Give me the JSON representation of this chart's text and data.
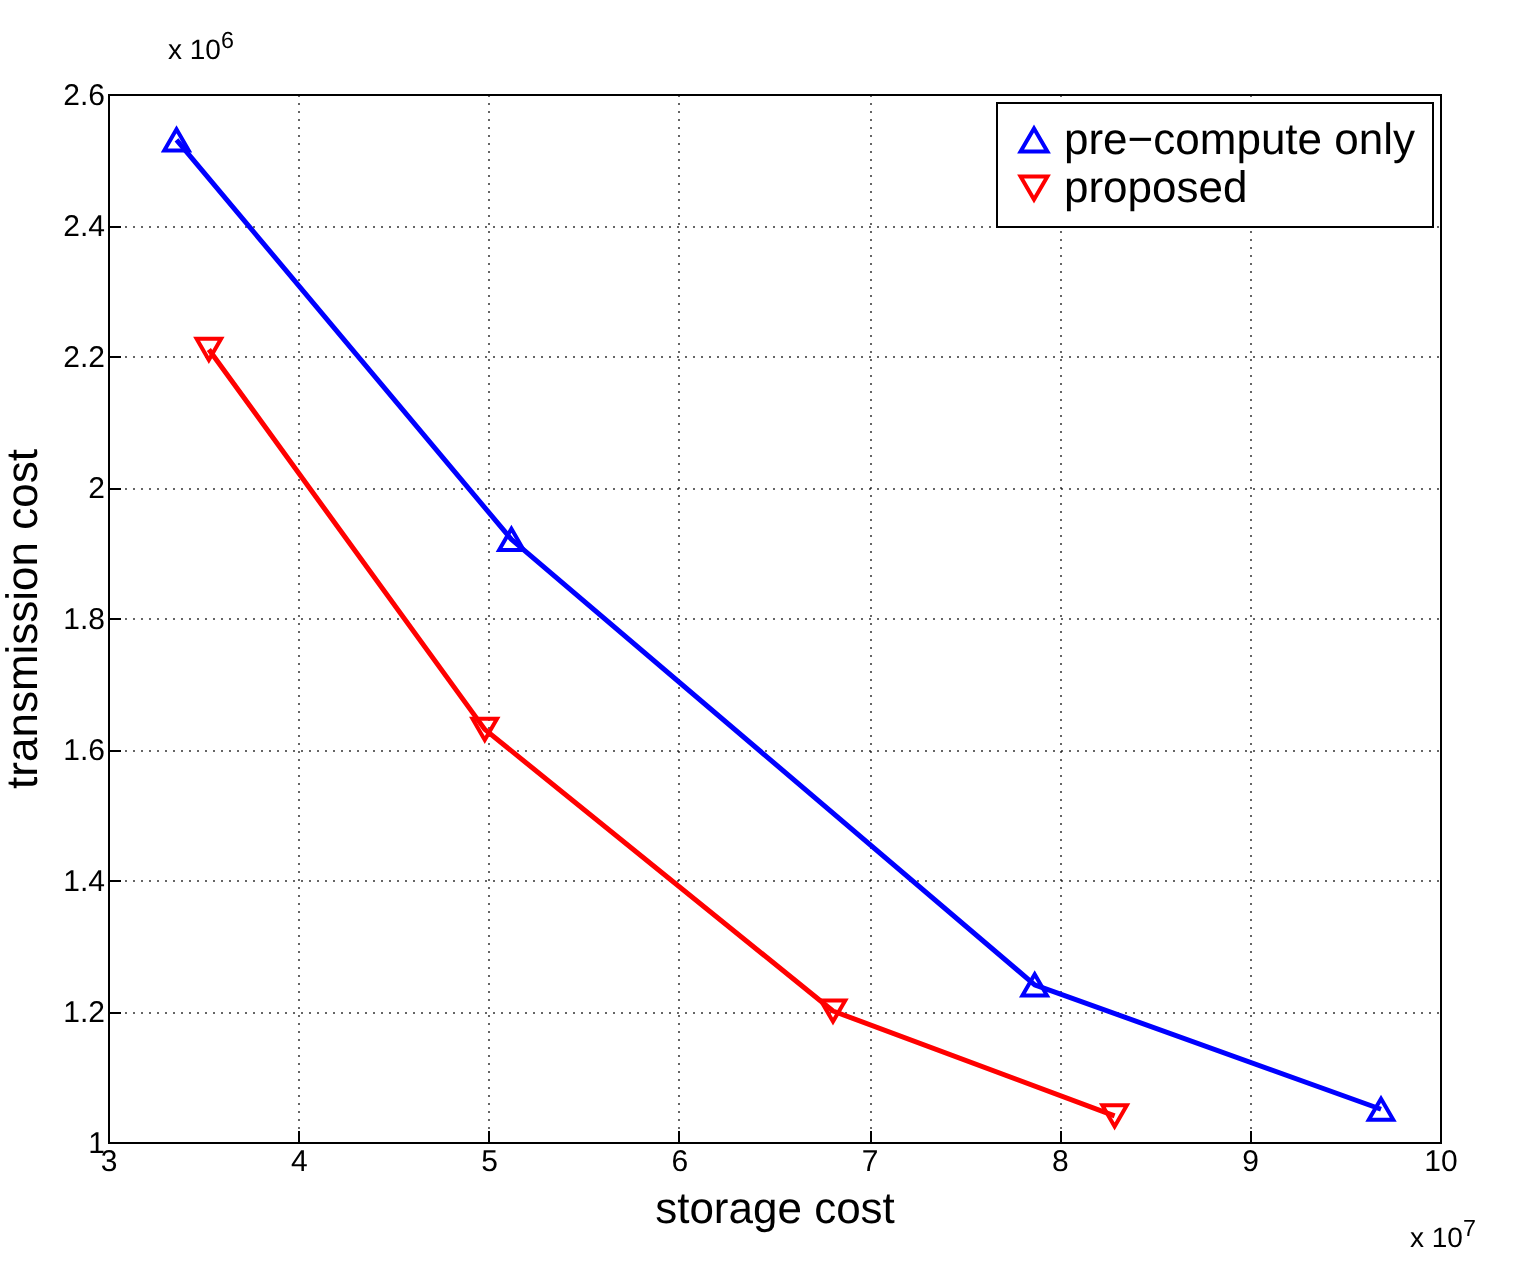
{
  "chart_data": {
    "type": "line",
    "xlabel": "storage cost",
    "ylabel": "transmission cost",
    "annotations": [
      "x 10$^{6}$",
      "x 10$^{7}$"
    ],
    "xlim": [
      3,
      10
    ],
    "xticks": [
      3,
      4,
      5,
      6,
      7,
      8,
      9,
      10
    ],
    "ylim": [
      1,
      2.6
    ],
    "yticks": [
      1,
      1.2,
      1.4,
      1.6,
      1.8,
      2,
      2.2,
      2.4,
      2.6
    ],
    "grid": true,
    "legend": "top right",
    "line_style": "solid",
    "series": [
      {
        "name": "pre−compute only",
        "color": "#0000ff",
        "marker": "triangle",
        "x": [
          3.36,
          5.12,
          7.87,
          9.69
        ],
        "values": [
          2.53,
          1.92,
          1.24,
          1.05
        ]
      },
      {
        "name": "proposed",
        "color": "#ff0000",
        "marker": "triangle-down",
        "x": [
          3.53,
          4.98,
          6.81,
          8.29
        ],
        "values": [
          2.21,
          1.63,
          1.2,
          1.04
        ]
      }
    ]
  }
}
